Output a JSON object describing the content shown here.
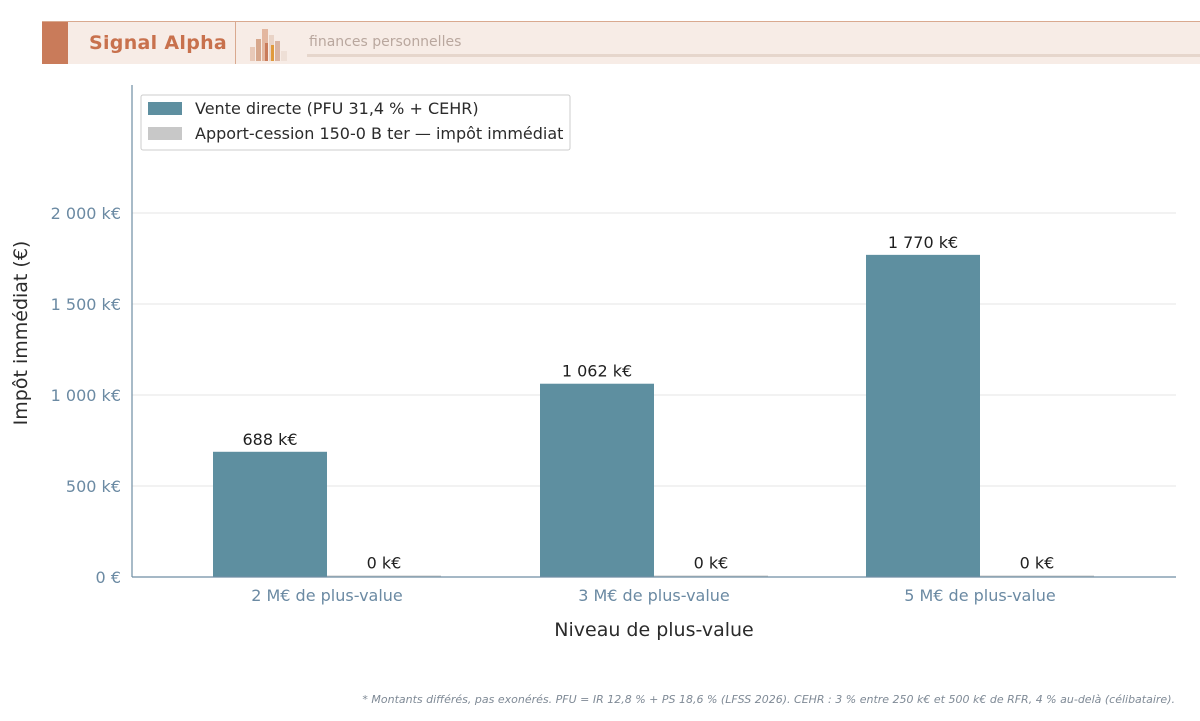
{
  "header": {
    "brand": "Signal Alpha",
    "tagline": "finances personnelles",
    "logo_icon": "bar-chart-logo-icon"
  },
  "footnote": "* Montants différés, pas exonérés. PFU = IR 12,8 % + PS 18,6 % (LFSS 2026). CEHR : 3 % entre 250 k€ et 500 k€ de RFR, 4 % au-delà (célibataire).",
  "chart_data": {
    "type": "bar",
    "title": "",
    "xlabel": "Niveau de plus-value",
    "ylabel": "Impôt immédiat (€)",
    "categories": [
      "2 M€ de plus-value",
      "3 M€ de plus-value",
      "5 M€ de plus-value"
    ],
    "ylim": [
      0,
      2500
    ],
    "yticks": [
      0,
      500,
      1000,
      1500,
      2000
    ],
    "ytick_labels": [
      "0 €",
      "500 k€",
      "1 000 k€",
      "1 500 k€",
      "2 000 k€"
    ],
    "grid": true,
    "legend_position": "top-left",
    "series": [
      {
        "name": "Vente directe (PFU 31,4 % + CEHR)",
        "color": "#5e8fa0",
        "values": [
          688,
          1062,
          1770
        ],
        "labels": [
          "688 k€",
          "1 062 k€",
          "1 770 k€"
        ]
      },
      {
        "name": "Apport-cession 150-0 B ter — impôt immédiat",
        "color": "#c8c8c8",
        "values": [
          0,
          0,
          0
        ],
        "labels": [
          "0 k€",
          "0 k€",
          "0 k€"
        ]
      }
    ]
  }
}
